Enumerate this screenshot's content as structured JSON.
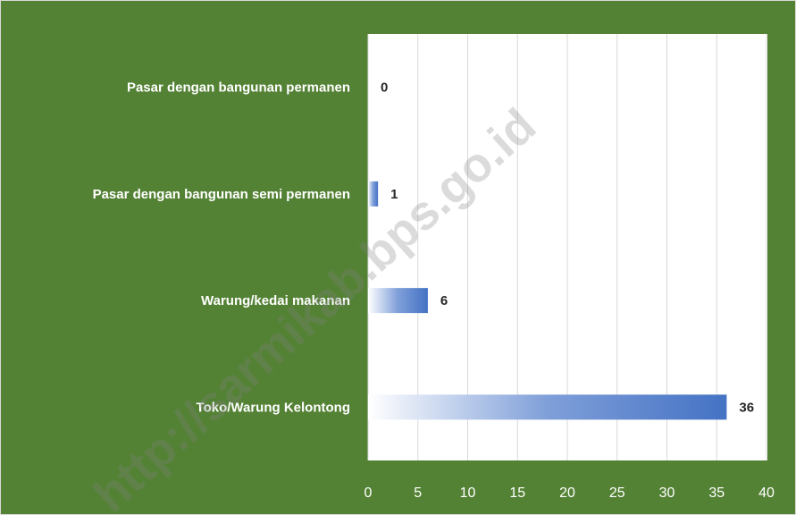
{
  "chart_data": {
    "type": "bar",
    "orientation": "horizontal",
    "categories": [
      "Pasar dengan bangunan permanen",
      "Pasar dengan bangunan semi permanen",
      "Warung/kedai makanan",
      "Toko/Warung Kelontong"
    ],
    "values": [
      0,
      1,
      6,
      36
    ],
    "color": "#4472c4",
    "xlim": [
      0,
      40
    ],
    "xticks": [
      0,
      5,
      10,
      15,
      20,
      25,
      30,
      35,
      40
    ],
    "grid": true,
    "watermark": "http://sarmikab.bps.go.id"
  }
}
